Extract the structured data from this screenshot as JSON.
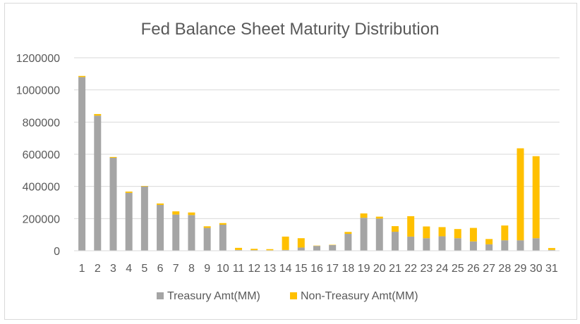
{
  "chart_data": {
    "type": "bar",
    "stacked": true,
    "title": "Fed Balance Sheet Maturity Distribution",
    "xlabel": "",
    "ylabel": "",
    "ylim": [
      0,
      1200000
    ],
    "yticks": [
      0,
      200000,
      400000,
      600000,
      800000,
      1000000,
      1200000
    ],
    "ytick_labels": [
      "0",
      "200000",
      "400000",
      "600000",
      "800000",
      "1000000",
      "1200000"
    ],
    "grid": true,
    "legend_position": "bottom",
    "categories": [
      "1",
      "2",
      "3",
      "4",
      "5",
      "6",
      "7",
      "8",
      "9",
      "10",
      "11",
      "12",
      "13",
      "14",
      "15",
      "16",
      "17",
      "18",
      "19",
      "20",
      "21",
      "22",
      "23",
      "24",
      "25",
      "26",
      "27",
      "28",
      "29",
      "30",
      "31"
    ],
    "series": [
      {
        "name": "Treasury Amt(MM)",
        "color": "#a5a5a5",
        "values": [
          1080000,
          840000,
          578000,
          360000,
          400000,
          285000,
          225000,
          222000,
          142000,
          162000,
          5000,
          4000,
          3000,
          5000,
          20000,
          30000,
          35000,
          105000,
          205000,
          200000,
          118000,
          88000,
          78000,
          90000,
          78000,
          58000,
          40000,
          65000,
          65000,
          78000,
          5000
        ]
      },
      {
        "name": "Non-Treasury Amt(MM)",
        "color": "#ffc000",
        "values": [
          7000,
          10000,
          5000,
          8000,
          3000,
          9000,
          20000,
          16000,
          10000,
          10000,
          13000,
          8000,
          7000,
          83000,
          58000,
          2000,
          2000,
          12000,
          27000,
          12000,
          35000,
          127000,
          73000,
          57000,
          57000,
          84000,
          33000,
          92000,
          572000,
          510000,
          12000
        ]
      }
    ]
  }
}
